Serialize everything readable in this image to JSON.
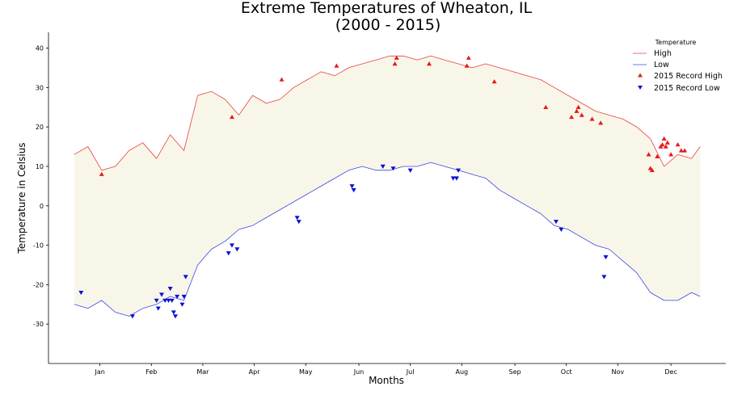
{
  "chart_data": {
    "type": "line",
    "title": "Extreme Temperatures of Wheaton, IL",
    "subtitle": "(2000 - 2015)",
    "xlabel": "Months",
    "ylabel": "Temperature in Celsius",
    "xlim": [
      -15,
      380
    ],
    "ylim": [
      -40,
      44
    ],
    "yticks": [
      -30,
      -20,
      -10,
      0,
      10,
      20,
      30,
      40
    ],
    "month_ticks": [
      {
        "label": "Jan",
        "day": 15
      },
      {
        "label": "Feb",
        "day": 45
      },
      {
        "label": "Mar",
        "day": 75
      },
      {
        "label": "Apr",
        "day": 105
      },
      {
        "label": "May",
        "day": 135
      },
      {
        "label": "Jun",
        "day": 166
      },
      {
        "label": "Jul",
        "day": 196
      },
      {
        "label": "Aug",
        "day": 226
      },
      {
        "label": "Sep",
        "day": 257
      },
      {
        "label": "Oct",
        "day": 287
      },
      {
        "label": "Nov",
        "day": 317
      },
      {
        "label": "Dec",
        "day": 348
      }
    ],
    "legend_title": "Temperature",
    "legend_position": "top-right",
    "grid": false,
    "fill_between_color": "#f8f6e9",
    "series": [
      {
        "name": "High",
        "color": "#e8413c",
        "x": [
          0,
          8,
          16,
          24,
          32,
          40,
          48,
          56,
          64,
          72,
          80,
          88,
          96,
          104,
          112,
          120,
          128,
          136,
          144,
          152,
          160,
          168,
          176,
          184,
          192,
          200,
          208,
          216,
          224,
          232,
          240,
          248,
          256,
          264,
          272,
          280,
          288,
          296,
          304,
          312,
          320,
          328,
          336,
          344,
          352,
          360,
          365
        ],
        "values": [
          13,
          15,
          9,
          10,
          14,
          16,
          12,
          18,
          14,
          28,
          29,
          27,
          23,
          28,
          26,
          27,
          30,
          32,
          34,
          33,
          35,
          36,
          37,
          38,
          38,
          37,
          38,
          37,
          36,
          35,
          36,
          35,
          34,
          33,
          32,
          30,
          28,
          26,
          24,
          23,
          22,
          20,
          17,
          10,
          13,
          12,
          15
        ]
      },
      {
        "name": "Low",
        "color": "#3b46e3",
        "x": [
          0,
          8,
          16,
          24,
          32,
          40,
          48,
          56,
          64,
          72,
          80,
          88,
          96,
          104,
          112,
          120,
          128,
          136,
          144,
          152,
          160,
          168,
          176,
          184,
          192,
          200,
          208,
          216,
          224,
          232,
          240,
          248,
          256,
          264,
          272,
          280,
          288,
          296,
          304,
          312,
          320,
          328,
          336,
          344,
          352,
          360,
          365
        ],
        "values": [
          -25,
          -26,
          -24,
          -27,
          -28,
          -26,
          -25,
          -23,
          -24,
          -15,
          -11,
          -9,
          -6,
          -5,
          -3,
          -1,
          1,
          3,
          5,
          7,
          9,
          10,
          9,
          9,
          10,
          10,
          11,
          10,
          9,
          8,
          7,
          4,
          2,
          0,
          -2,
          -5,
          -6,
          -8,
          -10,
          -11,
          -14,
          -17,
          -22,
          -24,
          -24,
          -22,
          -23
        ]
      }
    ],
    "record_high": {
      "name": "2015 Record High",
      "color": "#e8191b",
      "points": [
        [
          16,
          8
        ],
        [
          92,
          22.5
        ],
        [
          121,
          32
        ],
        [
          153,
          35.5
        ],
        [
          187,
          36
        ],
        [
          188,
          37.5
        ],
        [
          207,
          36
        ],
        [
          229,
          35.5
        ],
        [
          230,
          37.5
        ],
        [
          245,
          31.5
        ],
        [
          275,
          25
        ],
        [
          290,
          22.5
        ],
        [
          293,
          24
        ],
        [
          294,
          25
        ],
        [
          296,
          23
        ],
        [
          302,
          22
        ],
        [
          307,
          21
        ],
        [
          335,
          13
        ],
        [
          336,
          9.5
        ],
        [
          337,
          9
        ],
        [
          340,
          12.5
        ],
        [
          342,
          15
        ],
        [
          343,
          15.5
        ],
        [
          344,
          17
        ],
        [
          345,
          15
        ],
        [
          346,
          16
        ],
        [
          348,
          13
        ],
        [
          352,
          15.5
        ],
        [
          354,
          14
        ],
        [
          356,
          14
        ]
      ]
    },
    "record_low": {
      "name": "2015 Record Low",
      "color": "#0b11d4",
      "points": [
        [
          4,
          -22
        ],
        [
          34,
          -28
        ],
        [
          48,
          -24
        ],
        [
          49,
          -26
        ],
        [
          51,
          -22.5
        ],
        [
          53,
          -24
        ],
        [
          55,
          -24
        ],
        [
          56,
          -21
        ],
        [
          57,
          -24
        ],
        [
          58,
          -27
        ],
        [
          59,
          -28
        ],
        [
          60,
          -23
        ],
        [
          63,
          -25
        ],
        [
          64,
          -23
        ],
        [
          65,
          -18
        ],
        [
          90,
          -12
        ],
        [
          92,
          -10
        ],
        [
          95,
          -11
        ],
        [
          130,
          -3
        ],
        [
          131,
          -4
        ],
        [
          162,
          5
        ],
        [
          163,
          4
        ],
        [
          180,
          10
        ],
        [
          186,
          9.5
        ],
        [
          196,
          9
        ],
        [
          221,
          7
        ],
        [
          223,
          7
        ],
        [
          224,
          9
        ],
        [
          281,
          -4
        ],
        [
          284,
          -6
        ],
        [
          309,
          -18
        ],
        [
          310,
          -13
        ]
      ]
    }
  }
}
